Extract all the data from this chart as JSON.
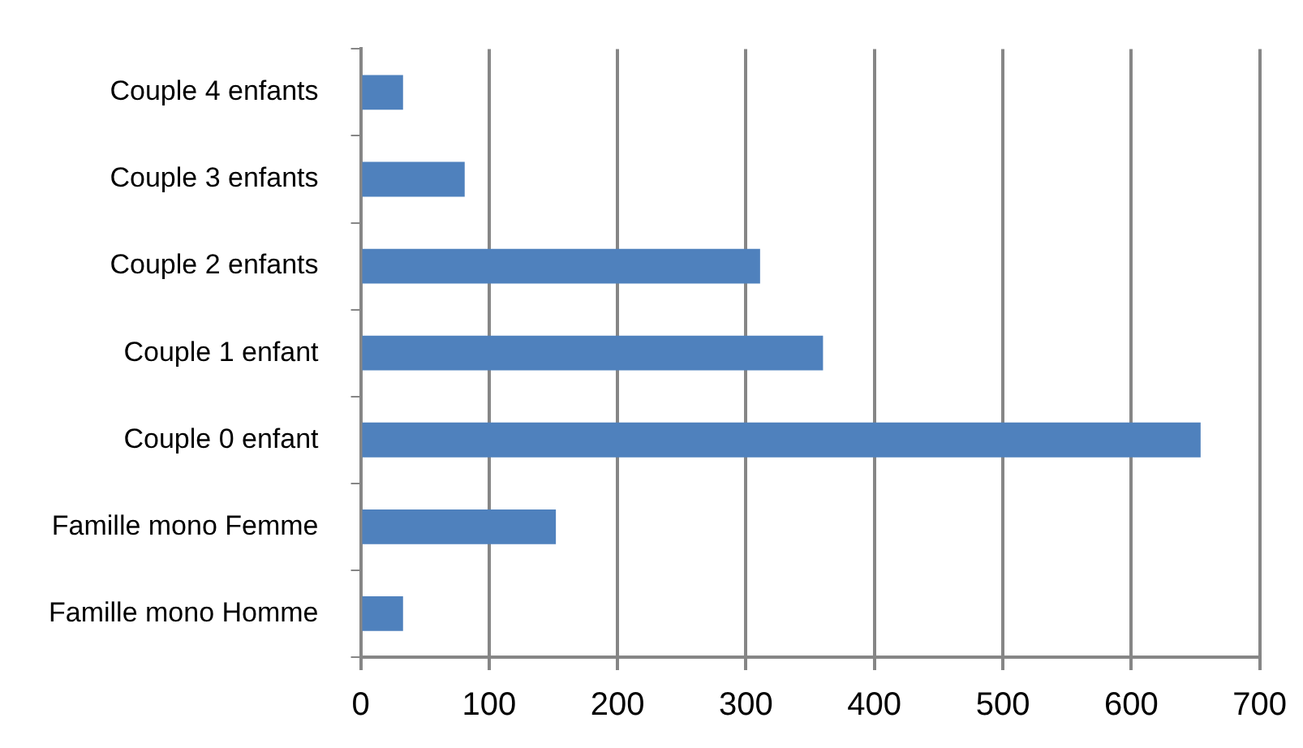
{
  "chart_data": {
    "type": "bar",
    "orientation": "horizontal",
    "categories": [
      "Couple 4 enfants",
      "Couple 3 enfants",
      "Couple 2 enfants",
      "Couple 1 enfant",
      "Couple 0 enfant",
      "Famille mono Femme",
      "Famille mono Homme"
    ],
    "values": [
      33,
      81,
      311,
      360,
      654,
      152,
      33
    ],
    "color": "#4f81bd",
    "xlim": [
      0,
      700
    ],
    "xticks": [
      0,
      100,
      200,
      300,
      400,
      500,
      600,
      700
    ],
    "grid": "x",
    "legend": false
  }
}
